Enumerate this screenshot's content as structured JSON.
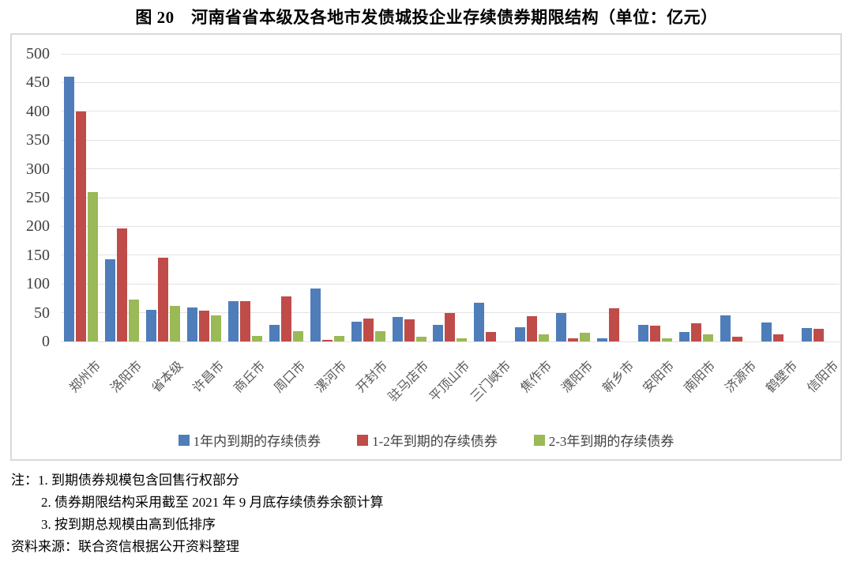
{
  "page": {
    "title": "图 20　河南省省本级及各地市发债城投企业存续债券期限结构（单位：亿元）"
  },
  "chart_data": {
    "type": "bar",
    "title": "河南省省本级及各地市发债城投企业存续债券期限结构",
    "unit": "亿元",
    "categories": [
      "郑州市",
      "洛阳市",
      "省本级",
      "许昌市",
      "商丘市",
      "周口市",
      "漯河市",
      "开封市",
      "驻马店市",
      "平顶山市",
      "三门峡市",
      "焦作市",
      "濮阳市",
      "新乡市",
      "安阳市",
      "南阳市",
      "济源市",
      "鹤壁市",
      "信阳市"
    ],
    "series": [
      {
        "name": "1年内到期的存续债券",
        "color": "#4e7dba",
        "values": [
          460,
          143,
          55,
          59,
          70,
          29,
          92,
          35,
          43,
          29,
          68,
          25,
          50,
          6,
          29,
          16,
          46,
          33,
          24
        ]
      },
      {
        "name": "1-2年到期的存续债券",
        "color": "#bf4c49",
        "values": [
          400,
          196,
          145,
          54,
          70,
          78,
          3,
          40,
          39,
          49,
          16,
          44,
          5,
          58,
          27,
          31,
          8,
          13,
          22
        ]
      },
      {
        "name": "2-3年到期的存续债券",
        "color": "#9ab957",
        "values": [
          260,
          73,
          62,
          46,
          9,
          18,
          9,
          18,
          8,
          6,
          0,
          13,
          15,
          0,
          6,
          12,
          0,
          0,
          0
        ]
      }
    ],
    "ylim": [
      0,
      500
    ],
    "ytick_step": 50,
    "grid": true,
    "legend_position": "bottom",
    "xlabel": "",
    "ylabel": ""
  },
  "notes": {
    "line1": "注：1. 到期债券规模包含回售行权部分",
    "line2": "2. 债券期限结构采用截至 2021 年 9 月底存续债券余额计算",
    "line3": "3. 按到期总规模由高到低排序",
    "source": "资料来源：联合资信根据公开资料整理"
  }
}
